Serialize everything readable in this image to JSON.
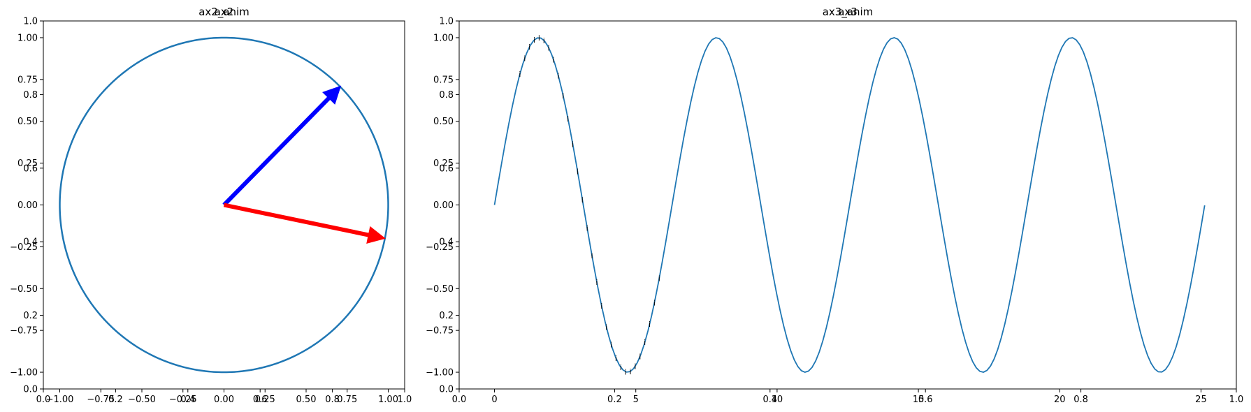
{
  "chart_data": [
    {
      "type": "line",
      "title": "ax2",
      "overlay_title": "ax2_anim",
      "xlim": [
        -1.1,
        1.1
      ],
      "ylim": [
        -1.1,
        1.1
      ],
      "xticks": [
        "−1.00",
        "−0.75",
        "−0.50",
        "−0.25",
        "0.00",
        "0.25",
        "0.50",
        "0.75",
        "1.00"
      ],
      "yticks": [
        "−1.00",
        "−0.75",
        "−0.50",
        "−0.25",
        "0.00",
        "0.25",
        "0.50",
        "0.75",
        "1.00"
      ],
      "series": [
        {
          "kind": "circle",
          "radius": 1.0,
          "color": "#1f77b4"
        },
        {
          "kind": "arrow",
          "from": [
            0,
            0
          ],
          "to": [
            0.71,
            0.71
          ],
          "color": "#0000ff"
        },
        {
          "kind": "arrow",
          "from": [
            0,
            0
          ],
          "to": [
            0.98,
            -0.2
          ],
          "color": "#ff0000"
        }
      ],
      "overlay_axes": {
        "xticks": [
          "0.0",
          "0.2",
          "0.4",
          "0.6",
          "0.8",
          "1.0"
        ],
        "yticks": [
          "0.0",
          "0.2",
          "0.4",
          "0.6",
          "0.8",
          "1.0"
        ]
      }
    },
    {
      "type": "line",
      "title": "ax3",
      "overlay_title": "ax3_anim",
      "xlim": [
        -1.25,
        26.25
      ],
      "ylim": [
        -1.1,
        1.1
      ],
      "xticks": [
        "0",
        "5",
        "10",
        "15",
        "20",
        "25"
      ],
      "yticks": [
        "−1.00",
        "−0.75",
        "−0.50",
        "−0.25",
        "0.00",
        "0.25",
        "0.50",
        "0.75",
        "1.00"
      ],
      "series": [
        {
          "kind": "function",
          "name": "",
          "function": "sin",
          "x_range": [
            0,
            25.13
          ],
          "samples": 200,
          "color": "#1f77b4"
        }
      ],
      "marker_glyph": "i",
      "marker_x": [
        0.9,
        1.07,
        1.24,
        1.41,
        1.58,
        1.75,
        1.92,
        2.09,
        2.26,
        2.43,
        2.6,
        2.77,
        2.94,
        3.11,
        3.28,
        3.45,
        3.62,
        3.79,
        3.96,
        4.13,
        4.3,
        4.47,
        4.64,
        4.81,
        4.98,
        5.15,
        5.32,
        5.49,
        5.66,
        5.83
      ],
      "overlay_axes": {
        "xticks": [
          "0.0",
          "0.2",
          "0.4",
          "0.6",
          "0.8",
          "1.0"
        ],
        "yticks": [
          "0.0",
          "0.2",
          "0.4",
          "0.6",
          "0.8",
          "1.0"
        ]
      }
    }
  ]
}
